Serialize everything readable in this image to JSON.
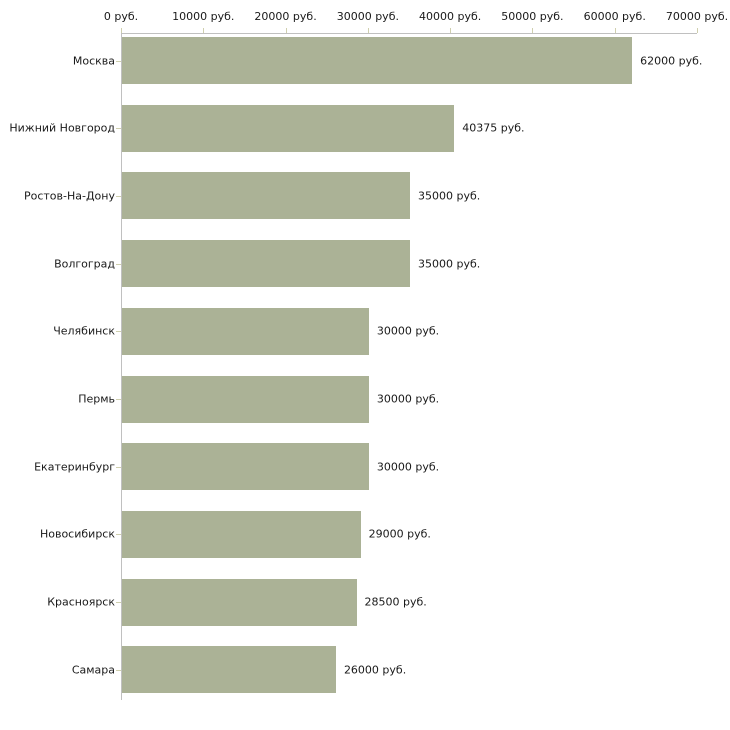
{
  "chart_data": {
    "type": "bar",
    "orientation": "horizontal",
    "title": "",
    "xlabel": "",
    "ylabel": "",
    "unit": "руб.",
    "categories": [
      "Москва",
      "Нижний Новгород",
      "Ростов-На-Дону",
      "Волгоград",
      "Челябинск",
      "Пермь",
      "Екатеринбург",
      "Новосибирск",
      "Красноярск",
      "Самара"
    ],
    "values": [
      62000,
      40375,
      35000,
      35000,
      30000,
      30000,
      30000,
      29000,
      28500,
      26000
    ],
    "value_labels": [
      "62000 руб.",
      "40375 руб.",
      "35000 руб.",
      "35000 руб.",
      "30000 руб.",
      "30000 руб.",
      "30000 руб.",
      "29000 руб.",
      "28500 руб.",
      "26000 руб."
    ],
    "x_tick_values": [
      0,
      10000,
      20000,
      30000,
      40000,
      50000,
      60000,
      70000
    ],
    "x_tick_labels": [
      "0 руб.",
      "10000 руб.",
      "20000 руб.",
      "30000 руб.",
      "40000 руб.",
      "50000 руб.",
      "60000 руб.",
      "70000 руб."
    ],
    "xlim": [
      0,
      70000
    ],
    "grid": "off",
    "legend": "none",
    "colors": {
      "bar": "#abb296",
      "axis_line": "#c0c0c0",
      "tick": "#cfcfae",
      "text": "#1a1a1a",
      "background": "#ffffff"
    }
  }
}
